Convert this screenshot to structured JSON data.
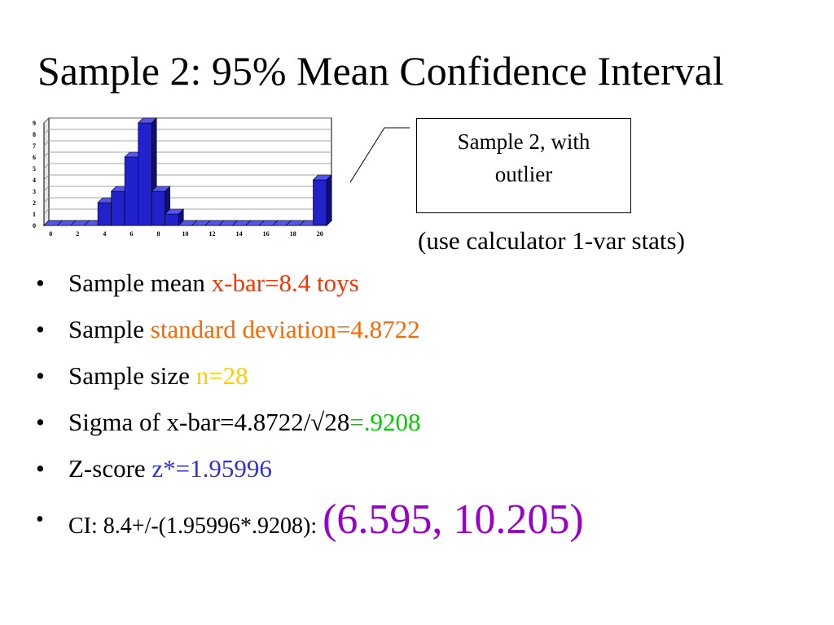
{
  "slide": {
    "title": "Sample 2: 95% Mean Confidence Interval",
    "callout_line1": "Sample 2, with",
    "callout_line2": "outlier",
    "calc_note": "(use calculator 1-var stats)",
    "bullet_glyph": "•"
  },
  "bullets": [
    {
      "text": "Sample mean ",
      "highlight": "x-bar=8.4 toys",
      "color": "#ff3300"
    },
    {
      "text": "Sample ",
      "highlight": "standard deviation=4.8722",
      "color": "#ff6600"
    },
    {
      "text": "Sample size ",
      "highlight": "n=28",
      "color": "#ffcc00"
    },
    {
      "text": "Sigma of x-bar=4.8722/√28",
      "highlight": "=.9208",
      "color": "#00cc00"
    },
    {
      "text": "Z-score ",
      "highlight": "z*=1.95996",
      "color": "#3333cc"
    },
    {
      "text": "CI: 8.4+/-(1.95996*.9208): ",
      "highlight": "(6.595, 10.205)",
      "color": "#9900cc"
    }
  ],
  "chart_data": {
    "type": "bar",
    "x": [
      0,
      1,
      2,
      3,
      4,
      5,
      6,
      7,
      8,
      9,
      10,
      11,
      12,
      13,
      14,
      15,
      16,
      17,
      18,
      19,
      20
    ],
    "values": [
      0,
      0,
      0,
      0,
      2,
      3,
      6,
      9,
      3,
      1,
      0,
      0,
      0,
      0,
      0,
      0,
      0,
      0,
      0,
      0,
      4
    ],
    "xticks": [
      "0",
      "2",
      "4",
      "6",
      "8",
      "10",
      "12",
      "14",
      "16",
      "18",
      "20"
    ],
    "yticks": [
      "0",
      "1",
      "2",
      "3",
      "4",
      "5",
      "6",
      "7",
      "8",
      "9"
    ],
    "ylim": [
      0,
      9
    ],
    "grid": true,
    "bar_color": "#2222cc",
    "bar_side_color": "#0e0e80",
    "bar_top_color": "#5555ee"
  }
}
